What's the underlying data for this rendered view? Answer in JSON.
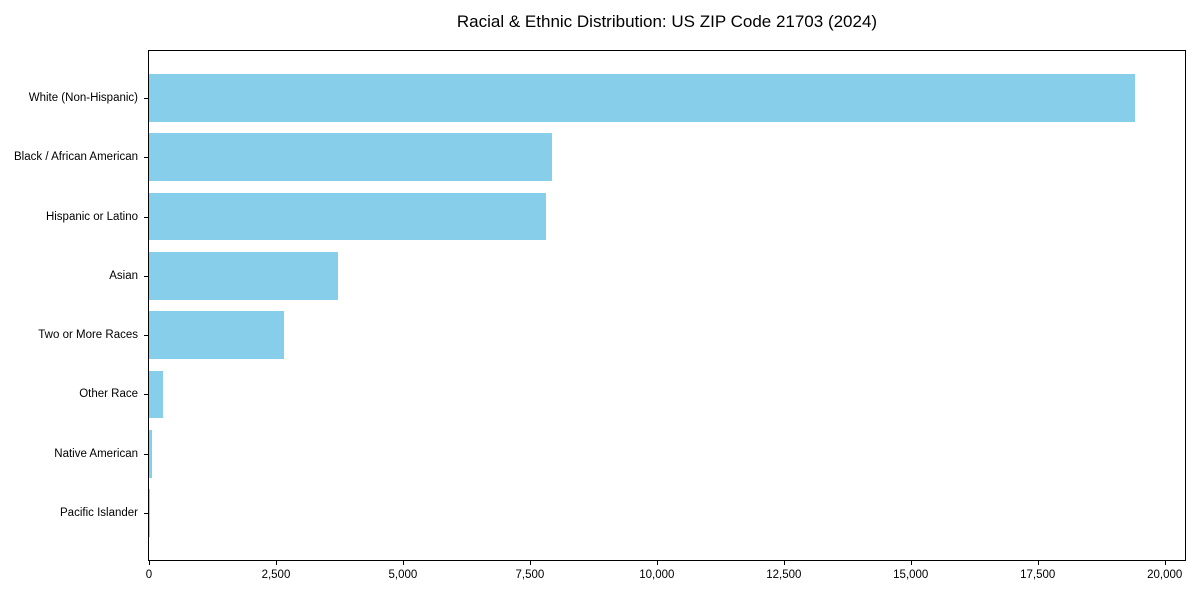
{
  "title": "Racial & Ethnic Distribution: US ZIP Code 21703 (2024)",
  "colors": {
    "bar": "#87CEEB",
    "axis": "#000000",
    "background": "#FFFFFF",
    "text": "#000000"
  },
  "chart_data": {
    "type": "bar",
    "orientation": "horizontal",
    "title": "Racial & Ethnic Distribution: US ZIP Code 21703 (2024)",
    "categories": [
      "White (Non-Hispanic)",
      "Black / African American",
      "Hispanic or Latino",
      "Asian",
      "Two or More Races",
      "Other Race",
      "Native American",
      "Pacific Islander"
    ],
    "values": [
      19410,
      7940,
      7820,
      3720,
      2660,
      270,
      60,
      20
    ],
    "xlabel": "",
    "ylabel": "",
    "xlim": [
      0,
      20400
    ],
    "xticks": [
      0,
      2500,
      5000,
      7500,
      10000,
      12500,
      15000,
      17500,
      20000
    ],
    "xtick_labels": [
      "0",
      "2,500",
      "5,000",
      "7,500",
      "10,000",
      "12,500",
      "15,000",
      "17,500",
      "20,000"
    ],
    "bar_color": "#87CEEB",
    "grid": false,
    "legend": null,
    "bar_height_ratio": 0.8
  }
}
